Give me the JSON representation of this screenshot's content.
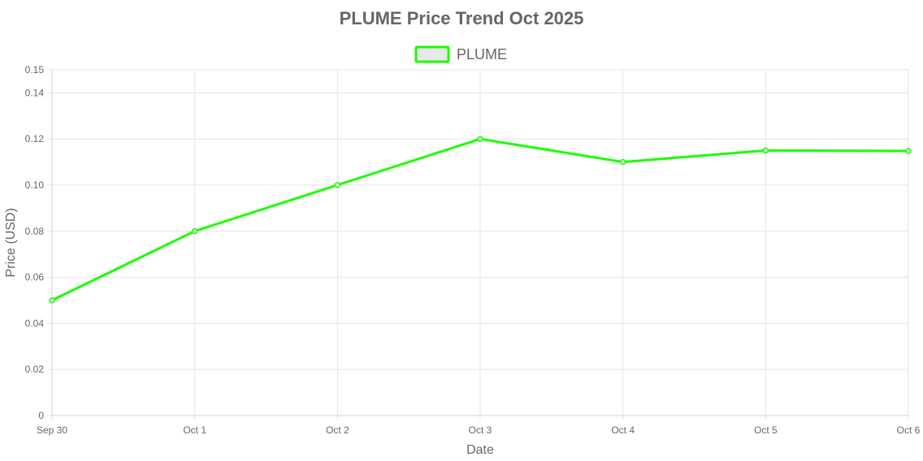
{
  "chart_data": {
    "type": "line",
    "title": "PLUME Price Trend Oct 2025",
    "xlabel": "Date",
    "ylabel": "Price (USD)",
    "categories": [
      "Sep 30",
      "Oct 1",
      "Oct 2",
      "Oct 3",
      "Oct 4",
      "Oct 5",
      "Oct 6"
    ],
    "series": [
      {
        "name": "PLUME",
        "values": [
          0.05,
          0.08,
          0.1,
          0.12,
          0.11,
          0.115,
          0.1148
        ],
        "color": "#1aff00",
        "legend_fill": "#e8e8e8"
      }
    ],
    "ylim": [
      0,
      0.15
    ],
    "yticks": [
      0,
      0.02,
      0.04,
      0.06,
      0.08,
      0.1,
      0.12,
      0.14,
      0.15
    ],
    "ytick_labels": [
      "0",
      "0.02",
      "0.04",
      "0.06",
      "0.08",
      "0.10",
      "0.12",
      "0.14",
      "0.15"
    ],
    "grid": true,
    "legend_position": "top-center"
  }
}
